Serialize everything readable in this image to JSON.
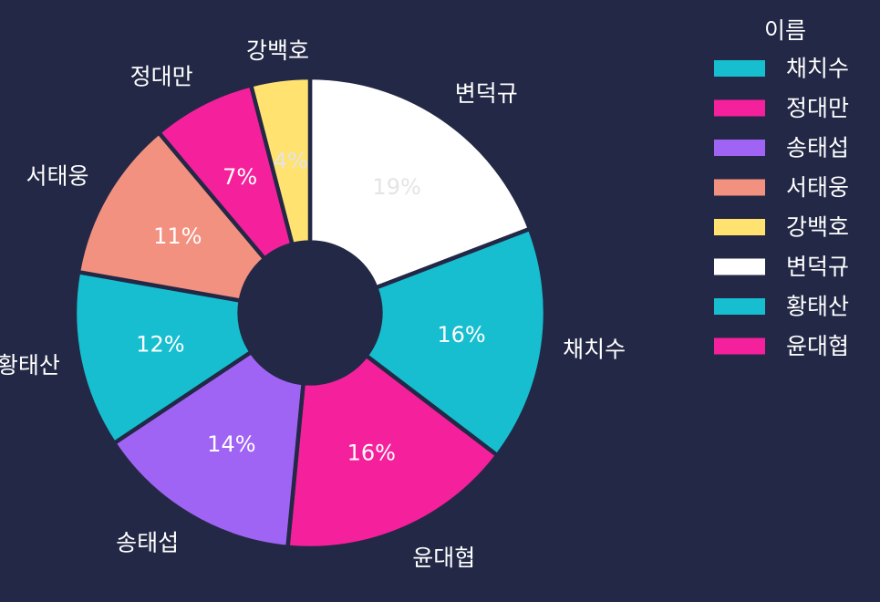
{
  "chart_data": {
    "type": "pie",
    "hole": 0.3,
    "legend_title": "이름",
    "legend_position": "top-right",
    "background_color": "#222845",
    "categories": [
      "변덕규",
      "채치수",
      "윤대협",
      "송태섭",
      "황태산",
      "서태웅",
      "정대만",
      "강백호"
    ],
    "values": [
      19,
      16,
      16,
      14,
      12,
      11,
      7,
      4
    ],
    "percent_labels": [
      "19%",
      "16%",
      "16%",
      "14%",
      "12%",
      "11%",
      "7%",
      "4%"
    ],
    "legend_order": [
      "채치수",
      "정대만",
      "송태섭",
      "서태웅",
      "강백호",
      "변덕규",
      "황태산",
      "윤대협"
    ],
    "colors": {
      "채치수": "#17BECF",
      "정대만": "#F5209B",
      "송태섭": "#A064F5",
      "서태웅": "#F39180",
      "강백호": "#FFE270",
      "변덕규": "#FFFFFF",
      "황태산": "#17BECF",
      "윤대협": "#F5209B"
    }
  }
}
